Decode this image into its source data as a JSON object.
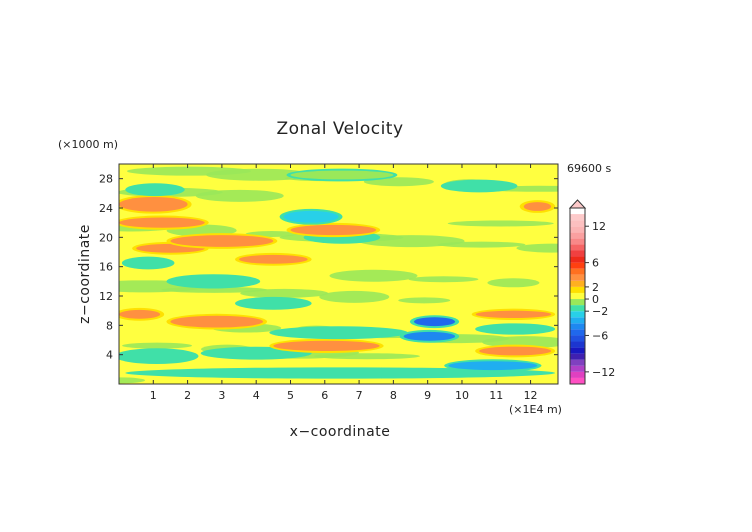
{
  "chart_data": {
    "type": "heatmap",
    "title": "Zonal Velocity",
    "xlabel": "x−coordinate",
    "ylabel": "z−coordinate",
    "x_unit": "(×1E4 m)",
    "y_unit": "(×1000 m)",
    "time_label": "69600 s",
    "xlim": [
      0,
      12.8
    ],
    "ylim": [
      0,
      30
    ],
    "x_ticks": [
      1,
      2,
      3,
      4,
      5,
      6,
      7,
      8,
      9,
      10,
      11,
      12
    ],
    "x_tick_labels": [
      "1",
      "2",
      "3",
      "4",
      "5",
      "6",
      "7",
      "8",
      "9",
      "10",
      "11",
      "12"
    ],
    "y_ticks": [
      4,
      8,
      12,
      16,
      20,
      24,
      28
    ],
    "y_tick_labels": [
      "4",
      "8",
      "12",
      "16",
      "20",
      "24",
      "28"
    ],
    "colorbar": {
      "min": -14,
      "max": 15,
      "levels": [
        -14,
        -13,
        -12,
        -11,
        -10,
        -9,
        -8,
        -7,
        -6,
        -5,
        -4,
        -3,
        -2,
        -1,
        0,
        1,
        2,
        3,
        4,
        5,
        6,
        7,
        8,
        9,
        10,
        11,
        12,
        13,
        14
      ],
      "colors": [
        "#ff4fc3",
        "#e040c0",
        "#b040c8",
        "#8040c0",
        "#4020b0",
        "#1818c0",
        "#1c36d0",
        "#2050e0",
        "#2068ec",
        "#1e88f0",
        "#20aef0",
        "#28d0e8",
        "#40e0a8",
        "#9ae85a",
        "#ffff40",
        "#ffe000",
        "#ffb020",
        "#ff9040",
        "#ff7020",
        "#ff4010",
        "#ee2a1a",
        "#f04040",
        "#f56464",
        "#f88888",
        "#faa0a0",
        "#fbb4b4",
        "#fcc0c0",
        "#fdcaca"
      ],
      "tick_labels": [
        "12",
        "6",
        "2",
        "0",
        "−2",
        "−6",
        "−12"
      ],
      "tick_values": [
        12,
        6,
        2,
        0,
        -2,
        -6,
        -12
      ]
    },
    "bands": [
      {
        "z": 1.5,
        "x0": 0.3,
        "x1": 12.6,
        "v": -1.5,
        "amp": 0.5
      },
      {
        "z": 2.5,
        "x0": 9.6,
        "x1": 12.2,
        "v": -4,
        "amp": 0.6
      },
      {
        "z": 3.8,
        "x0": 0,
        "x1": 2.2,
        "v": -1.5,
        "amp": 0.8
      },
      {
        "z": 4.2,
        "x0": 2.5,
        "x1": 5.5,
        "v": -1.5,
        "amp": 0.6
      },
      {
        "z": 4.5,
        "x0": 10.5,
        "x1": 12.6,
        "v": 3,
        "amp": 0.6
      },
      {
        "z": 5.2,
        "x0": 4.5,
        "x1": 7.6,
        "v": 3,
        "amp": 0.7
      },
      {
        "z": 6.5,
        "x0": 8.3,
        "x1": 9.8,
        "v": -5,
        "amp": 0.6
      },
      {
        "z": 7,
        "x0": 4.5,
        "x1": 8.3,
        "v": -2,
        "amp": 0.6
      },
      {
        "z": 7.5,
        "x0": 10.5,
        "x1": 12.6,
        "v": -2,
        "amp": 0.5
      },
      {
        "z": 8.5,
        "x0": 1.5,
        "x1": 4.2,
        "v": 3,
        "amp": 0.8
      },
      {
        "z": 8.5,
        "x0": 8.6,
        "x1": 9.8,
        "v": -6,
        "amp": 0.6
      },
      {
        "z": 9.5,
        "x0": 0,
        "x1": 1.2,
        "v": 3,
        "amp": 0.6
      },
      {
        "z": 9.5,
        "x0": 10.4,
        "x1": 12.6,
        "v": 3,
        "amp": 0.5
      },
      {
        "z": 11,
        "x0": 3.5,
        "x1": 5.5,
        "v": -1.5,
        "amp": 0.6
      },
      {
        "z": 14,
        "x0": 1.5,
        "x1": 4,
        "v": -2,
        "amp": 0.7
      },
      {
        "z": 16.5,
        "x0": 0.2,
        "x1": 1.5,
        "v": -2,
        "amp": 0.6
      },
      {
        "z": 17,
        "x0": 3.5,
        "x1": 5.5,
        "v": 3,
        "amp": 0.6
      },
      {
        "z": 18.5,
        "x0": 0.5,
        "x1": 2.5,
        "v": 3,
        "amp": 0.6
      },
      {
        "z": 19.5,
        "x0": 1.5,
        "x1": 4.5,
        "v": 3,
        "amp": 0.8
      },
      {
        "z": 20,
        "x0": 5.5,
        "x1": 7.5,
        "v": -2,
        "amp": 0.6
      },
      {
        "z": 21,
        "x0": 5,
        "x1": 7.5,
        "v": 3,
        "amp": 0.7
      },
      {
        "z": 22,
        "x0": 0,
        "x1": 2.5,
        "v": 3,
        "amp": 0.7
      },
      {
        "z": 22.8,
        "x0": 4.8,
        "x1": 6.4,
        "v": -3,
        "amp": 0.8
      },
      {
        "z": 24.5,
        "x0": 0,
        "x1": 2,
        "v": 3,
        "amp": 1
      },
      {
        "z": 24.2,
        "x0": 11.8,
        "x1": 12.6,
        "v": 3,
        "amp": 0.6
      },
      {
        "z": 26.5,
        "x0": 0.3,
        "x1": 1.8,
        "v": -2,
        "amp": 0.6
      },
      {
        "z": 27,
        "x0": 9.5,
        "x1": 11.5,
        "v": -1.5,
        "amp": 0.6
      },
      {
        "z": 28.5,
        "x0": 5,
        "x1": 8,
        "v": -1,
        "amp": 0.6
      }
    ]
  }
}
